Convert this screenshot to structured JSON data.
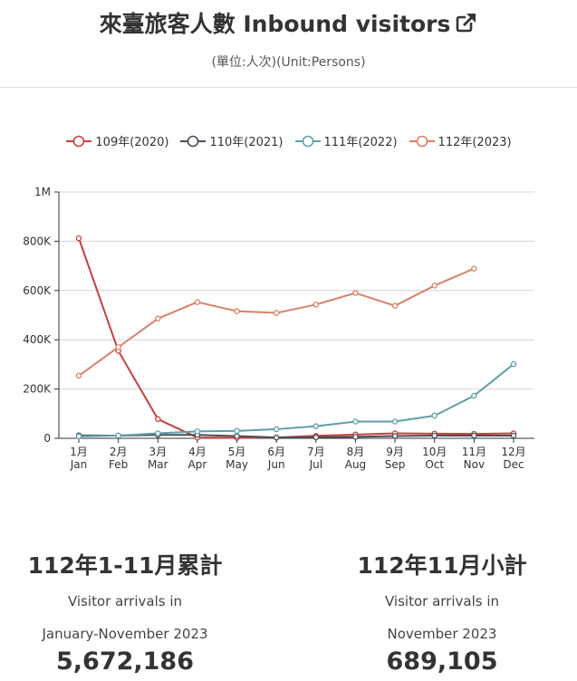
{
  "header": {
    "title": "來臺旅客人數 Inbound visitors",
    "external_link_icon": "external-link-icon",
    "subtitle": "(單位:人次)(Unit:Persons)"
  },
  "chart_data": {
    "type": "line",
    "title": "",
    "xlabel": "",
    "ylabel": "",
    "ylim": [
      0,
      1000000
    ],
    "yticks": [
      0,
      200000,
      400000,
      600000,
      800000,
      1000000
    ],
    "ytick_labels": [
      "0",
      "200K",
      "400K",
      "600K",
      "800K",
      "1M"
    ],
    "categories_zh": [
      "1月",
      "2月",
      "3月",
      "4月",
      "5月",
      "6月",
      "7月",
      "8月",
      "9月",
      "10月",
      "11月",
      "12月"
    ],
    "categories_en": [
      "Jan",
      "Feb",
      "Mar",
      "Apr",
      "May",
      "Jun",
      "Jul",
      "Aug",
      "Sep",
      "Oct",
      "Nov",
      "Dec"
    ],
    "grid": true,
    "legend_position": "top",
    "series": [
      {
        "name": "109年(2020)",
        "color": "#c8413f",
        "values": [
          812000,
          355000,
          78000,
          3000,
          2000,
          3000,
          10000,
          15000,
          20000,
          19000,
          18000,
          20000
        ]
      },
      {
        "name": "110年(2021)",
        "color": "#4a4e57",
        "values": [
          12000,
          11000,
          14000,
          14000,
          9000,
          3000,
          4000,
          6000,
          9000,
          11000,
          11000,
          11000
        ]
      },
      {
        "name": "111年(2022)",
        "color": "#5e9fa8",
        "values": [
          8000,
          11000,
          20000,
          28000,
          30000,
          37000,
          49000,
          68000,
          68000,
          92000,
          173000,
          301000
        ]
      },
      {
        "name": "112年(2023)",
        "color": "#d98068",
        "values": [
          254000,
          370000,
          486000,
          553000,
          516000,
          509000,
          543000,
          590000,
          538000,
          620000,
          689000
        ]
      }
    ]
  },
  "stats": {
    "left": {
      "title": "112年1-11月累計",
      "line1": "Visitor arrivals in",
      "line2": "January-November 2023",
      "value": "5,672,186"
    },
    "right": {
      "title": "112年11月小計",
      "line1": "Visitor arrivals in",
      "line2": "November 2023",
      "value": "689,105"
    }
  }
}
